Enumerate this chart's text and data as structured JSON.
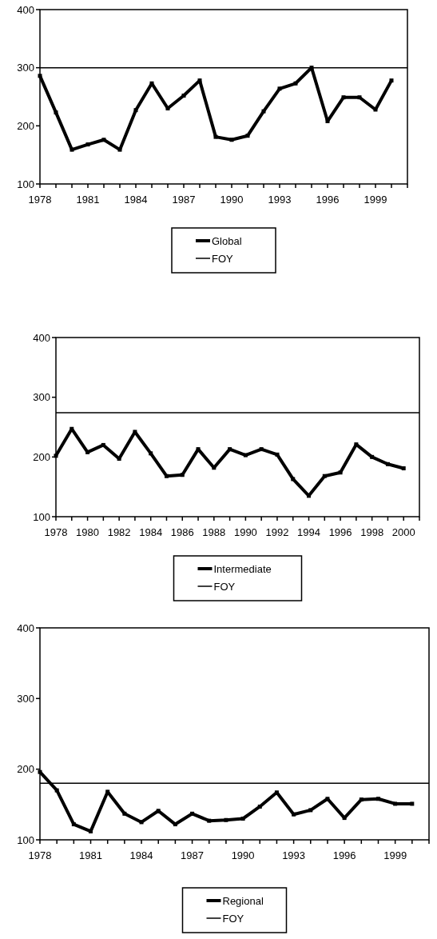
{
  "chart_data": [
    {
      "type": "line",
      "categories": [
        "1978",
        null,
        null,
        "1981",
        null,
        null,
        "1984",
        null,
        null,
        "1987",
        null,
        null,
        "1990",
        null,
        null,
        "1993",
        null,
        null,
        "1996",
        null,
        null,
        "1999",
        null
      ],
      "series": [
        {
          "name": "Global",
          "color": "#000000",
          "values": [
            286,
            223,
            159,
            168,
            176,
            159,
            227,
            273,
            230,
            252,
            278,
            181,
            176,
            183,
            225,
            264,
            273,
            300,
            208,
            249,
            249,
            228,
            278
          ]
        }
      ],
      "ylim": [
        100,
        400
      ],
      "yticks": [
        100,
        200,
        300,
        400
      ],
      "ref_lines": [
        {
          "axis": "y",
          "value": 300,
          "label": "FOY",
          "color": "#000000"
        }
      ],
      "legend": "bottom",
      "grid": false,
      "marker": "square",
      "line_style": "solid"
    },
    {
      "type": "line",
      "categories": [
        "1978",
        null,
        "1980",
        null,
        "1982",
        null,
        "1984",
        null,
        "1986",
        null,
        "1988",
        null,
        "1990",
        null,
        "1992",
        null,
        "1994",
        null,
        "1996",
        null,
        "1998",
        null,
        "2000"
      ],
      "series": [
        {
          "name": "Intermediate",
          "color": "#000000",
          "values": [
            202,
            247,
            208,
            220,
            197,
            242,
            206,
            168,
            170,
            213,
            182,
            213,
            203,
            213,
            204,
            163,
            135,
            168,
            174,
            221,
            200,
            188,
            181
          ]
        }
      ],
      "ylim": [
        100,
        400
      ],
      "yticks": [
        100,
        200,
        300,
        400
      ],
      "ref_lines": [
        {
          "axis": "y",
          "value": 274,
          "label": "FOY",
          "color": "#000000"
        }
      ],
      "legend": "bottom",
      "grid": false,
      "marker": "square",
      "line_style": "solid"
    },
    {
      "type": "line",
      "categories": [
        "1978",
        null,
        null,
        "1981",
        null,
        null,
        "1984",
        null,
        null,
        "1987",
        null,
        null,
        "1990",
        null,
        null,
        "1993",
        null,
        null,
        "1996",
        null,
        null,
        "1999",
        null
      ],
      "series": [
        {
          "name": "Regional",
          "color": "#000000",
          "values": [
            196,
            170,
            122,
            112,
            168,
            137,
            125,
            141,
            122,
            137,
            127,
            128,
            130,
            147,
            167,
            136,
            142,
            158,
            131,
            157,
            158,
            151,
            151
          ]
        }
      ],
      "ylim": [
        100,
        400
      ],
      "yticks": [
        100,
        200,
        300,
        400
      ],
      "ref_lines": [
        {
          "axis": "y",
          "value": 180,
          "label": "FOY",
          "color": "#000000"
        }
      ],
      "legend": "bottom",
      "grid": false,
      "marker": "square",
      "line_style": "solid"
    }
  ]
}
